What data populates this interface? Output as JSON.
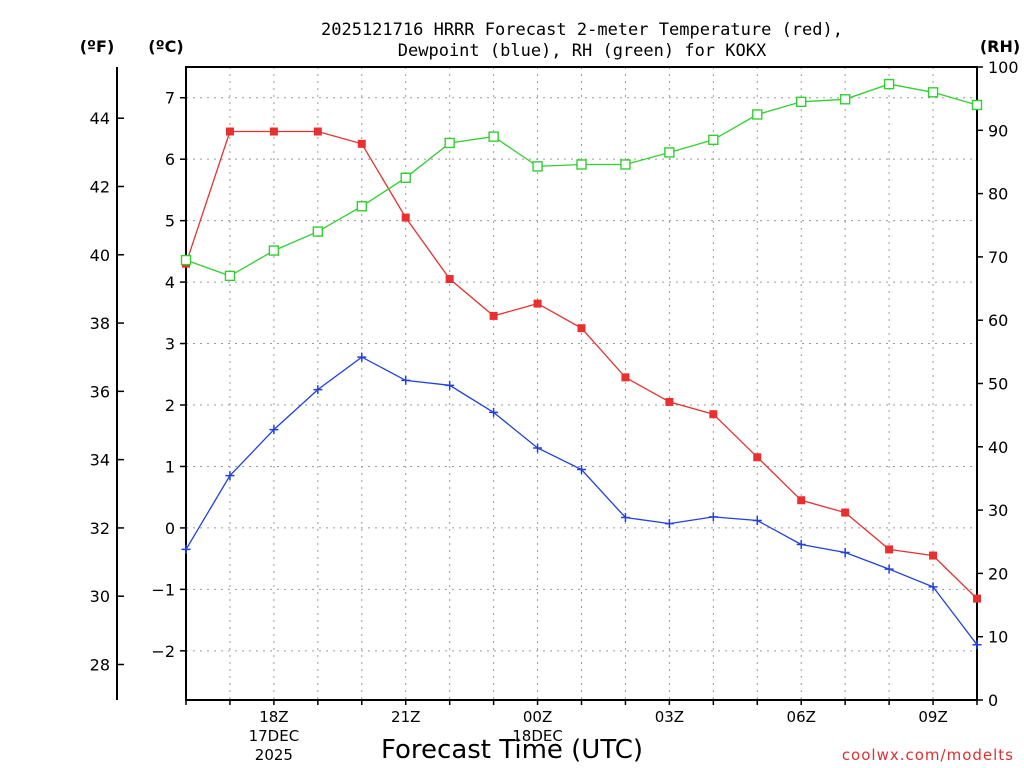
{
  "chart_data": {
    "type": "line",
    "title_lines": [
      "2025121716 HRRR Forecast 2-meter Temperature (red),",
      "Dewpoint (blue), RH (green) for KOKX"
    ],
    "xlabel": "Forecast Time (UTC)",
    "unit_labels": {
      "f": "(ºF)",
      "c": "(ºC)",
      "rh": "(RH)"
    },
    "x_hours": [
      16,
      17,
      18,
      19,
      20,
      21,
      22,
      23,
      24,
      25,
      26,
      27,
      28,
      29,
      30,
      31,
      32,
      33,
      34
    ],
    "x_ticks": [
      {
        "hour": 18,
        "label": "18Z"
      },
      {
        "hour": 21,
        "label": "21Z"
      },
      {
        "hour": 24,
        "label": "00Z"
      },
      {
        "hour": 27,
        "label": "03Z"
      },
      {
        "hour": 30,
        "label": "06Z"
      },
      {
        "hour": 33,
        "label": "09Z"
      }
    ],
    "date_labels": [
      {
        "hour": 18,
        "lines": [
          "17DEC",
          "2025"
        ]
      },
      {
        "hour": 24,
        "lines": [
          "18DEC"
        ]
      }
    ],
    "x_range": [
      16,
      34
    ],
    "celsius_axis": {
      "range": [
        -2.8,
        7.5
      ],
      "ticks": [
        -2,
        -1,
        0,
        1,
        2,
        3,
        4,
        5,
        6,
        7
      ]
    },
    "fahrenheit_axis": {
      "ticks": [
        28,
        30,
        32,
        34,
        36,
        38,
        40,
        42,
        44
      ]
    },
    "rh_axis": {
      "range": [
        0,
        100
      ],
      "ticks": [
        0,
        10,
        20,
        30,
        40,
        50,
        60,
        70,
        80,
        90,
        100
      ]
    },
    "series": [
      {
        "name": "Temperature",
        "axis": "celsius",
        "color": "#e83030",
        "marker": "square-filled",
        "values": [
          4.3,
          6.45,
          6.45,
          6.45,
          6.25,
          5.05,
          4.05,
          3.45,
          3.65,
          3.25,
          2.45,
          2.05,
          1.85,
          1.15,
          0.45,
          0.25,
          -0.35,
          -0.45,
          -1.15
        ]
      },
      {
        "name": "Dewpoint",
        "axis": "celsius",
        "color": "#2040e0",
        "marker": "plus",
        "values": [
          -0.35,
          0.85,
          1.6,
          2.25,
          2.78,
          2.4,
          2.32,
          1.88,
          1.3,
          0.95,
          0.17,
          0.07,
          0.18,
          0.12,
          -0.27,
          -0.4,
          -0.67,
          -0.96,
          -1.9
        ]
      },
      {
        "name": "RH",
        "axis": "rh",
        "color": "#30d030",
        "marker": "square-open",
        "values": [
          69.5,
          67,
          71,
          74,
          78,
          82.5,
          88,
          89,
          84.3,
          84.6,
          84.6,
          86.5,
          88.5,
          92.5,
          94.5,
          94.9,
          97.3,
          96,
          94
        ]
      }
    ],
    "grid": true,
    "credit": "coolwx.com/modelts"
  }
}
